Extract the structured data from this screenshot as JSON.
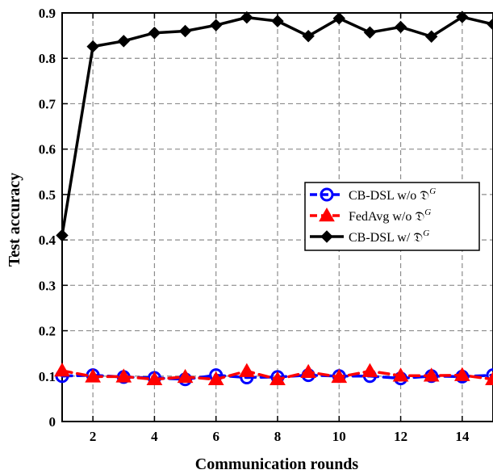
{
  "chart_data": {
    "type": "line",
    "xlabel": "Communication rounds",
    "ylabel": "Test accuracy",
    "xlim": [
      1,
      15
    ],
    "ylim": [
      0,
      0.9
    ],
    "xticks": [
      "2",
      "4",
      "6",
      "8",
      "10",
      "12",
      "14"
    ],
    "yticks": [
      "0",
      "0.1",
      "0.2",
      "0.3",
      "0.4",
      "0.5",
      "0.6",
      "0.7",
      "0.8",
      "0.9"
    ],
    "grid": true,
    "legend_position": "right-middle",
    "x": [
      1,
      2,
      3,
      4,
      5,
      6,
      7,
      8,
      9,
      10,
      11,
      12,
      13,
      14,
      15
    ],
    "series": [
      {
        "name": "CB-DSL w/o 𝔇",
        "superscript": "G",
        "color": "#0000ff",
        "marker": "circle",
        "line_style": "dashed",
        "values": [
          0.1,
          0.102,
          0.098,
          0.096,
          0.093,
          0.102,
          0.097,
          0.098,
          0.102,
          0.1,
          0.1,
          0.095,
          0.1,
          0.099,
          0.102
        ]
      },
      {
        "name": "FedAvg w/o 𝔇",
        "superscript": "G",
        "color": "#ff0000",
        "marker": "triangle",
        "line_style": "dashed",
        "values": [
          0.112,
          0.099,
          0.099,
          0.093,
          0.098,
          0.093,
          0.111,
          0.093,
          0.109,
          0.098,
          0.111,
          0.101,
          0.101,
          0.102,
          0.093
        ]
      },
      {
        "name": "CB-DSL w/ 𝔇",
        "superscript": "G",
        "color": "#000000",
        "marker": "diamond",
        "line_style": "solid",
        "values": [
          0.41,
          0.826,
          0.838,
          0.856,
          0.86,
          0.873,
          0.89,
          0.882,
          0.849,
          0.888,
          0.857,
          0.869,
          0.848,
          0.891,
          0.875
        ]
      }
    ]
  }
}
